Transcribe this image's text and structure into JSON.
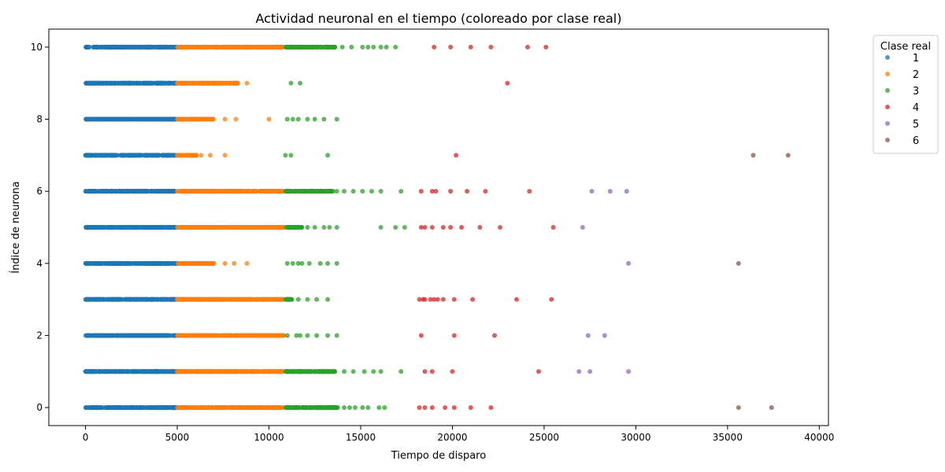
{
  "chart_data": {
    "type": "scatter",
    "title": "Actividad neuronal en el tiempo (coloreado por clase real)",
    "xlabel": "Tiempo de disparo",
    "ylabel": "Índice de neurona",
    "xlim": [
      -2000,
      40500
    ],
    "ylim": [
      -0.5,
      10.5
    ],
    "xticks": [
      0,
      5000,
      10000,
      15000,
      20000,
      25000,
      30000,
      35000,
      40000
    ],
    "xtick_labels": [
      "0",
      "5000",
      "10000",
      "15000",
      "20000",
      "25000",
      "30000",
      "35000",
      "40000"
    ],
    "yticks": [
      0,
      2,
      4,
      6,
      8,
      10
    ],
    "ytick_labels": [
      "0",
      "2",
      "4",
      "6",
      "8",
      "10"
    ],
    "grid": false,
    "legend": {
      "title": "Clase real",
      "placement": "outside-right",
      "entries": [
        {
          "label": "1",
          "color": "#1f77b4"
        },
        {
          "label": "2",
          "color": "#ff7f0e"
        },
        {
          "label": "3",
          "color": "#2ca02c"
        },
        {
          "label": "4",
          "color": "#d62728"
        },
        {
          "label": "5",
          "color": "#9467bd"
        },
        {
          "label": "6",
          "color": "#8c564b"
        }
      ]
    },
    "series": [
      {
        "name": "1",
        "color": "#1f77b4",
        "dense_ranges": [
          {
            "y": 10,
            "x_start": 0,
            "x_end": 5000
          },
          {
            "y": 9,
            "x_start": 0,
            "x_end": 5000
          },
          {
            "y": 8,
            "x_start": 0,
            "x_end": 5000
          },
          {
            "y": 7,
            "x_start": 0,
            "x_end": 5000
          },
          {
            "y": 6,
            "x_start": 0,
            "x_end": 5000
          },
          {
            "y": 5,
            "x_start": 0,
            "x_end": 5000
          },
          {
            "y": 4,
            "x_start": 0,
            "x_end": 5000
          },
          {
            "y": 3,
            "x_start": 0,
            "x_end": 5000
          },
          {
            "y": 2,
            "x_start": 0,
            "x_end": 5000
          },
          {
            "y": 1,
            "x_start": 0,
            "x_end": 5000
          },
          {
            "y": 0,
            "x_start": 0,
            "x_end": 5000
          }
        ]
      },
      {
        "name": "2",
        "color": "#ff7f0e",
        "dense_ranges": [
          {
            "y": 10,
            "x_start": 5000,
            "x_end": 10800
          },
          {
            "y": 9,
            "x_start": 5000,
            "x_end": 8300
          },
          {
            "y": 8,
            "x_start": 5000,
            "x_end": 7000
          },
          {
            "y": 7,
            "x_start": 5000,
            "x_end": 6100
          },
          {
            "y": 6,
            "x_start": 5000,
            "x_end": 10800
          },
          {
            "y": 5,
            "x_start": 5000,
            "x_end": 10800
          },
          {
            "y": 4,
            "x_start": 5000,
            "x_end": 7000
          },
          {
            "y": 3,
            "x_start": 5000,
            "x_end": 10800
          },
          {
            "y": 2,
            "x_start": 5000,
            "x_end": 10800
          },
          {
            "y": 1,
            "x_start": 5000,
            "x_end": 10800
          },
          {
            "y": 0,
            "x_start": 5000,
            "x_end": 10800
          }
        ],
        "points": [
          {
            "x": 8800,
            "y": 9
          },
          {
            "x": 7600,
            "y": 8
          },
          {
            "x": 8200,
            "y": 8
          },
          {
            "x": 10000,
            "y": 8
          },
          {
            "x": 6300,
            "y": 7
          },
          {
            "x": 6800,
            "y": 7
          },
          {
            "x": 7600,
            "y": 7
          },
          {
            "x": 7600,
            "y": 4
          },
          {
            "x": 8100,
            "y": 4
          },
          {
            "x": 8800,
            "y": 4
          }
        ]
      },
      {
        "name": "3",
        "color": "#2ca02c",
        "dense_ranges": [
          {
            "y": 10,
            "x_start": 10900,
            "x_end": 13600
          },
          {
            "y": 6,
            "x_start": 10900,
            "x_end": 13500
          },
          {
            "y": 5,
            "x_start": 10900,
            "x_end": 11800
          },
          {
            "y": 3,
            "x_start": 10900,
            "x_end": 11300
          },
          {
            "y": 1,
            "x_start": 10900,
            "x_end": 13600
          },
          {
            "y": 0,
            "x_start": 10900,
            "x_end": 13800
          }
        ],
        "points": [
          {
            "x": 14000,
            "y": 10
          },
          {
            "x": 14500,
            "y": 10
          },
          {
            "x": 15100,
            "y": 10
          },
          {
            "x": 15400,
            "y": 10
          },
          {
            "x": 15700,
            "y": 10
          },
          {
            "x": 16100,
            "y": 10
          },
          {
            "x": 16400,
            "y": 10
          },
          {
            "x": 16900,
            "y": 10
          },
          {
            "x": 11200,
            "y": 9
          },
          {
            "x": 11700,
            "y": 9
          },
          {
            "x": 11000,
            "y": 8
          },
          {
            "x": 11300,
            "y": 8
          },
          {
            "x": 11600,
            "y": 8
          },
          {
            "x": 12100,
            "y": 8
          },
          {
            "x": 12500,
            "y": 8
          },
          {
            "x": 13000,
            "y": 8
          },
          {
            "x": 13700,
            "y": 8
          },
          {
            "x": 10900,
            "y": 7
          },
          {
            "x": 11200,
            "y": 7
          },
          {
            "x": 13200,
            "y": 7
          },
          {
            "x": 13700,
            "y": 6
          },
          {
            "x": 14100,
            "y": 6
          },
          {
            "x": 14600,
            "y": 6
          },
          {
            "x": 15100,
            "y": 6
          },
          {
            "x": 15600,
            "y": 6
          },
          {
            "x": 16100,
            "y": 6
          },
          {
            "x": 17200,
            "y": 6
          },
          {
            "x": 12100,
            "y": 5
          },
          {
            "x": 12500,
            "y": 5
          },
          {
            "x": 13000,
            "y": 5
          },
          {
            "x": 13300,
            "y": 5
          },
          {
            "x": 13700,
            "y": 5
          },
          {
            "x": 16100,
            "y": 5
          },
          {
            "x": 16900,
            "y": 5
          },
          {
            "x": 17400,
            "y": 5
          },
          {
            "x": 11000,
            "y": 4
          },
          {
            "x": 11300,
            "y": 4
          },
          {
            "x": 11600,
            "y": 4
          },
          {
            "x": 11800,
            "y": 4
          },
          {
            "x": 12200,
            "y": 4
          },
          {
            "x": 12800,
            "y": 4
          },
          {
            "x": 13200,
            "y": 4
          },
          {
            "x": 13700,
            "y": 4
          },
          {
            "x": 11600,
            "y": 3
          },
          {
            "x": 12100,
            "y": 3
          },
          {
            "x": 12600,
            "y": 3
          },
          {
            "x": 13200,
            "y": 3
          },
          {
            "x": 11000,
            "y": 2
          },
          {
            "x": 11500,
            "y": 2
          },
          {
            "x": 11700,
            "y": 2
          },
          {
            "x": 12100,
            "y": 2
          },
          {
            "x": 12600,
            "y": 2
          },
          {
            "x": 13200,
            "y": 2
          },
          {
            "x": 13700,
            "y": 2
          },
          {
            "x": 14100,
            "y": 1
          },
          {
            "x": 14600,
            "y": 1
          },
          {
            "x": 15200,
            "y": 1
          },
          {
            "x": 15700,
            "y": 1
          },
          {
            "x": 16100,
            "y": 1
          },
          {
            "x": 17200,
            "y": 1
          },
          {
            "x": 14100,
            "y": 0
          },
          {
            "x": 14400,
            "y": 0
          },
          {
            "x": 14700,
            "y": 0
          },
          {
            "x": 15100,
            "y": 0
          },
          {
            "x": 15400,
            "y": 0
          },
          {
            "x": 16000,
            "y": 0
          },
          {
            "x": 16300,
            "y": 0
          }
        ]
      },
      {
        "name": "4",
        "color": "#d62728",
        "points": [
          {
            "x": 19000,
            "y": 10
          },
          {
            "x": 19900,
            "y": 10
          },
          {
            "x": 21000,
            "y": 10
          },
          {
            "x": 22100,
            "y": 10
          },
          {
            "x": 24100,
            "y": 10
          },
          {
            "x": 25100,
            "y": 10
          },
          {
            "x": 23000,
            "y": 9
          },
          {
            "x": 20200,
            "y": 7
          },
          {
            "x": 18300,
            "y": 6
          },
          {
            "x": 18900,
            "y": 6
          },
          {
            "x": 19100,
            "y": 6
          },
          {
            "x": 19900,
            "y": 6
          },
          {
            "x": 20800,
            "y": 6
          },
          {
            "x": 21800,
            "y": 6
          },
          {
            "x": 24200,
            "y": 6
          },
          {
            "x": 18300,
            "y": 5
          },
          {
            "x": 18500,
            "y": 5
          },
          {
            "x": 18900,
            "y": 5
          },
          {
            "x": 19500,
            "y": 5
          },
          {
            "x": 19900,
            "y": 5
          },
          {
            "x": 20500,
            "y": 5
          },
          {
            "x": 21500,
            "y": 5
          },
          {
            "x": 22600,
            "y": 5
          },
          {
            "x": 25500,
            "y": 5
          },
          {
            "x": 18200,
            "y": 3
          },
          {
            "x": 18400,
            "y": 3
          },
          {
            "x": 18500,
            "y": 3
          },
          {
            "x": 18800,
            "y": 3
          },
          {
            "x": 19000,
            "y": 3
          },
          {
            "x": 19200,
            "y": 3
          },
          {
            "x": 19500,
            "y": 3
          },
          {
            "x": 20100,
            "y": 3
          },
          {
            "x": 21100,
            "y": 3
          },
          {
            "x": 23500,
            "y": 3
          },
          {
            "x": 25400,
            "y": 3
          },
          {
            "x": 18300,
            "y": 2
          },
          {
            "x": 20100,
            "y": 2
          },
          {
            "x": 22300,
            "y": 2
          },
          {
            "x": 18500,
            "y": 1
          },
          {
            "x": 18900,
            "y": 1
          },
          {
            "x": 20000,
            "y": 1
          },
          {
            "x": 24700,
            "y": 1
          },
          {
            "x": 18200,
            "y": 0
          },
          {
            "x": 18500,
            "y": 0
          },
          {
            "x": 18900,
            "y": 0
          },
          {
            "x": 19600,
            "y": 0
          },
          {
            "x": 20100,
            "y": 0
          },
          {
            "x": 21000,
            "y": 0
          },
          {
            "x": 22100,
            "y": 0
          }
        ]
      },
      {
        "name": "5",
        "color": "#9467bd",
        "points": [
          {
            "x": 27600,
            "y": 6
          },
          {
            "x": 28600,
            "y": 6
          },
          {
            "x": 29500,
            "y": 6
          },
          {
            "x": 27100,
            "y": 5
          },
          {
            "x": 29600,
            "y": 4
          },
          {
            "x": 27400,
            "y": 2
          },
          {
            "x": 28300,
            "y": 2
          },
          {
            "x": 26900,
            "y": 1
          },
          {
            "x": 27500,
            "y": 1
          },
          {
            "x": 29600,
            "y": 1
          }
        ]
      },
      {
        "name": "6",
        "color": "#8c564b",
        "points": [
          {
            "x": 36400,
            "y": 7
          },
          {
            "x": 38300,
            "y": 7
          },
          {
            "x": 35600,
            "y": 4
          },
          {
            "x": 35600,
            "y": 0
          },
          {
            "x": 37400,
            "y": 0
          }
        ]
      }
    ]
  }
}
